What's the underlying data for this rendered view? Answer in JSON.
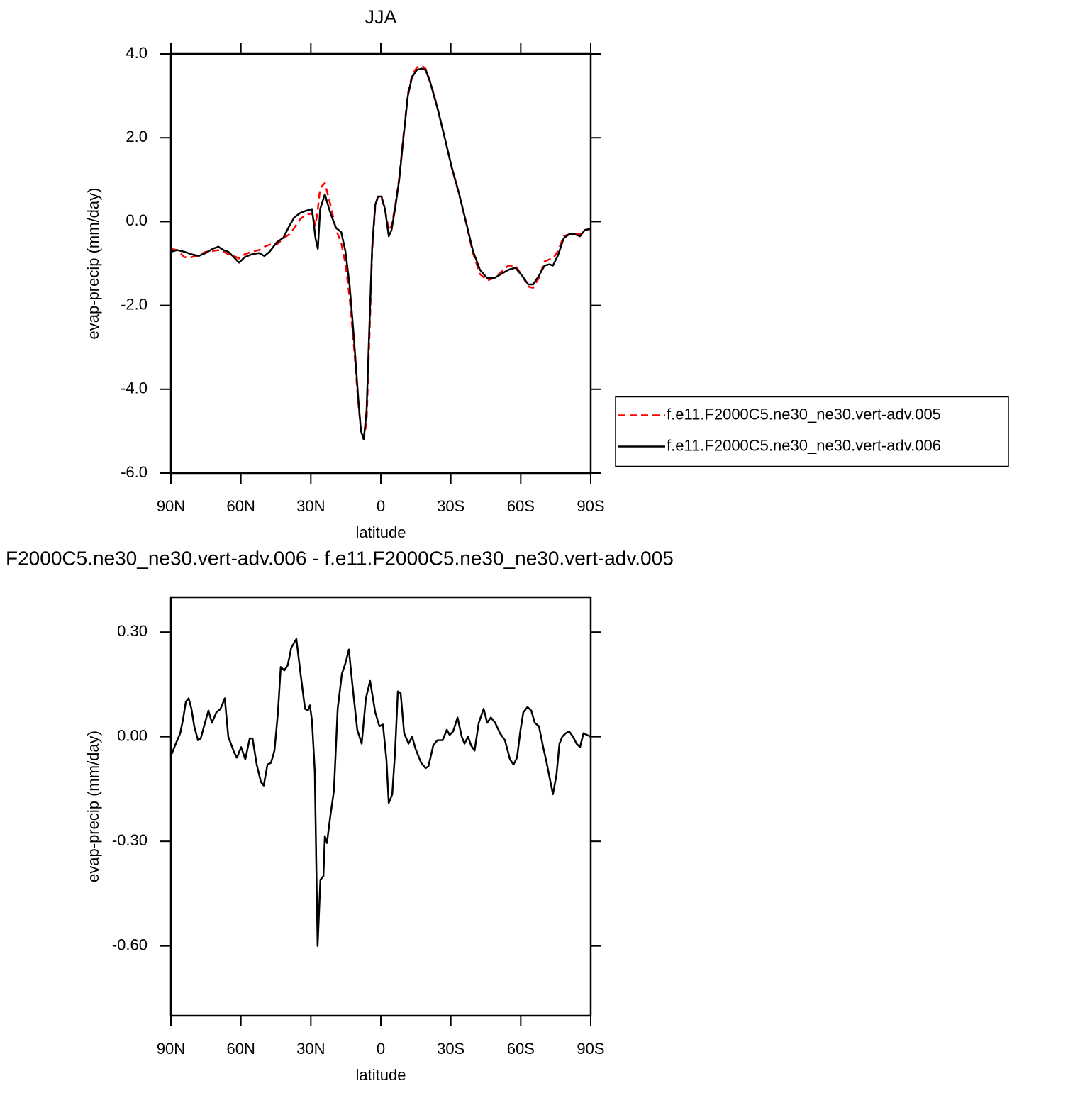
{
  "chart_data": [
    {
      "type": "line",
      "title": "JJA",
      "xlabel": "latitude",
      "ylabel": "evap-precip (mm/day)",
      "xlim": [
        90,
        -90
      ],
      "xticks": [
        {
          "value": 90,
          "label": "90N"
        },
        {
          "value": 60,
          "label": "60N"
        },
        {
          "value": 30,
          "label": "30N"
        },
        0,
        {
          "value": -30,
          "label": "30S"
        },
        {
          "value": -60,
          "label": "60S"
        },
        {
          "value": -90,
          "label": "90S"
        }
      ],
      "ylim": [
        -6,
        4
      ],
      "yticks": [
        {
          "value": -6,
          "label": "-6.0"
        },
        {
          "value": -4,
          "label": "-4.0"
        },
        {
          "value": -2,
          "label": "-2.0"
        },
        {
          "value": 0,
          "label": "0.0"
        },
        {
          "value": 2,
          "label": "2.0"
        },
        {
          "value": 4,
          "label": "4.0"
        }
      ],
      "legend": "right",
      "x": [
        90,
        87.3,
        84.2,
        81.2,
        78.1,
        75.1,
        72.1,
        69.6,
        67.5,
        65.4,
        63,
        60.8,
        58.4,
        55.3,
        52.3,
        49.9,
        47.7,
        44.7,
        41.7,
        39.2,
        37.1,
        34.7,
        32.5,
        29.5,
        28,
        27,
        26,
        24,
        21.6,
        19.2,
        17,
        15.2,
        13.4,
        11.5,
        9.7,
        8.5,
        7.3,
        6.1,
        4.9,
        3.7,
        2.4,
        1.2,
        -0.3,
        -1.8,
        -3.4,
        -4.6,
        -6.1,
        -7.9,
        -9.7,
        -11.6,
        -13.4,
        -15.5,
        -17.6,
        -19.2,
        -21.3,
        -24.3,
        -27.4,
        -30.4,
        -33.4,
        -36.5,
        -39.5,
        -42.5,
        -45.6,
        -48.6,
        -51.6,
        -54.7,
        -57.7,
        -60.7,
        -63.2,
        -65.3,
        -67.7,
        -70.2,
        -72.3,
        -73.8,
        -76,
        -78.4,
        -80.8,
        -83,
        -85.4,
        -87.5,
        -90
      ],
      "series": [
        {
          "name": "f.e11.F2000C5.ne30_ne30.vert-adv.005",
          "color": "#ff0000",
          "dashed": true,
          "values": [
            -0.65,
            -0.68,
            -0.85,
            -0.85,
            -0.8,
            -0.72,
            -0.7,
            -0.68,
            -0.72,
            -0.78,
            -0.82,
            -0.88,
            -0.78,
            -0.72,
            -0.68,
            -0.6,
            -0.55,
            -0.55,
            -0.4,
            -0.3,
            -0.15,
            0.05,
            0.15,
            0.2,
            -0.1,
            0.3,
            0.8,
            0.92,
            0.4,
            -0.2,
            -0.5,
            -1.0,
            -1.8,
            -3.0,
            -4.3,
            -5.0,
            -5.15,
            -4.8,
            -2.8,
            -0.7,
            0.35,
            0.6,
            0.55,
            0.3,
            -0.2,
            -0.1,
            0.35,
            1.05,
            2.05,
            3.05,
            3.5,
            3.68,
            3.72,
            3.65,
            3.32,
            2.72,
            2.0,
            1.28,
            0.68,
            -0.02,
            -0.75,
            -1.25,
            -1.4,
            -1.35,
            -1.2,
            -1.05,
            -1.05,
            -1.3,
            -1.55,
            -1.58,
            -1.35,
            -0.95,
            -0.9,
            -0.88,
            -0.7,
            -0.35,
            -0.3,
            -0.3,
            -0.3,
            -0.2,
            -0.18
          ]
        },
        {
          "name": "f.e11.F2000C5.ne30_ne30.vert-adv.006",
          "color": "#000000",
          "dashed": false,
          "values": [
            -0.72,
            -0.68,
            -0.72,
            -0.78,
            -0.82,
            -0.75,
            -0.65,
            -0.6,
            -0.68,
            -0.72,
            -0.85,
            -0.98,
            -0.85,
            -0.78,
            -0.75,
            -0.82,
            -0.72,
            -0.5,
            -0.38,
            -0.1,
            0.1,
            0.2,
            0.25,
            0.3,
            -0.4,
            -0.65,
            0.3,
            0.65,
            0.2,
            -0.15,
            -0.25,
            -0.7,
            -1.5,
            -2.8,
            -4.2,
            -5.0,
            -5.2,
            -4.5,
            -2.5,
            -0.6,
            0.4,
            0.6,
            0.6,
            0.3,
            -0.35,
            -0.2,
            0.3,
            1.0,
            2.0,
            3.0,
            3.45,
            3.62,
            3.65,
            3.62,
            3.3,
            2.7,
            2.0,
            1.3,
            0.7,
            0.0,
            -0.7,
            -1.15,
            -1.35,
            -1.35,
            -1.25,
            -1.15,
            -1.1,
            -1.3,
            -1.5,
            -1.5,
            -1.3,
            -1.05,
            -1.02,
            -1.05,
            -0.8,
            -0.4,
            -0.3,
            -0.3,
            -0.35,
            -0.2,
            -0.17
          ]
        }
      ]
    },
    {
      "type": "line",
      "title": "F2000C5.ne30_ne30.vert-adv.006 - f.e11.F2000C5.ne30_ne30.vert-adv.005",
      "xlabel": "latitude",
      "ylabel": "evap-precip (mm/day)",
      "xlim": [
        90,
        -90
      ],
      "xticks": [
        {
          "value": 90,
          "label": "90N"
        },
        {
          "value": 60,
          "label": "60N"
        },
        {
          "value": 30,
          "label": "30N"
        },
        0,
        {
          "value": -30,
          "label": "30S"
        },
        {
          "value": -60,
          "label": "60S"
        },
        {
          "value": -90,
          "label": "90S"
        }
      ],
      "ylim": [
        -0.8,
        0.4
      ],
      "yticks": [
        {
          "value": -0.6,
          "label": "-0.60"
        },
        {
          "value": -0.3,
          "label": "-0.30"
        },
        {
          "value": 0,
          "label": "0.00"
        },
        {
          "value": 0.3,
          "label": "0.30"
        }
      ],
      "x": [
        90,
        87.9,
        86,
        84.8,
        83.6,
        82.4,
        81.2,
        80,
        78.4,
        77.2,
        75.4,
        73.9,
        72.4,
        70.5,
        68.7,
        67.8,
        66.9,
        65.4,
        62.9,
        61.7,
        59.9,
        58.1,
        56.2,
        55,
        53.2,
        51.4,
        50.2,
        48.6,
        47.1,
        45.6,
        44.1,
        42.9,
        41.4,
        39.9,
        38.4,
        36.2,
        34.4,
        32.5,
        31.3,
        30.4,
        29.5,
        28.3,
        27.1,
        25.9,
        24.6,
        24,
        23.1,
        21.6,
        20.1,
        18.5,
        16.7,
        15.2,
        13.7,
        12.2,
        10.1,
        8.2,
        6.4,
        4.6,
        2.4,
        0.6,
        -0.9,
        -2.4,
        -3.4,
        -4.9,
        -6.1,
        -7.3,
        -8.5,
        -10,
        -11.9,
        -13.4,
        -14.9,
        -17.3,
        -19.2,
        -20.4,
        -22.5,
        -24.3,
        -26.5,
        -28.3,
        -29.5,
        -31,
        -32.9,
        -34.7,
        -35.9,
        -37.4,
        -38.7,
        -40.2,
        -42,
        -44.1,
        -45.6,
        -47.2,
        -49,
        -51.1,
        -53.2,
        -55.4,
        -56.9,
        -58.4,
        -59.9,
        -61.1,
        -62.9,
        -64.5,
        -66,
        -67.8,
        -69.6,
        -70.8,
        -72.3,
        -73.8,
        -75.3,
        -76.6,
        -77.8,
        -79.3,
        -80.8,
        -82.4,
        -83.9,
        -85.4,
        -86.9,
        -88.4,
        -90
      ],
      "series": [
        {
          "color": "#000000",
          "dashed": false,
          "values": [
            -0.055,
            -0.02,
            0.01,
            0.05,
            0.1,
            0.11,
            0.08,
            0.03,
            -0.01,
            -0.005,
            0.04,
            0.075,
            0.04,
            0.07,
            0.08,
            0.095,
            0.11,
            0.0,
            -0.045,
            -0.06,
            -0.03,
            -0.065,
            -0.005,
            -0.005,
            -0.08,
            -0.13,
            -0.14,
            -0.08,
            -0.075,
            -0.04,
            0.07,
            0.2,
            0.19,
            0.205,
            0.255,
            0.28,
            0.18,
            0.08,
            0.075,
            0.09,
            0.045,
            -0.1,
            -0.6,
            -0.41,
            -0.4,
            -0.285,
            -0.305,
            -0.225,
            -0.155,
            0.08,
            0.18,
            0.21,
            0.25,
            0.15,
            0.02,
            -0.02,
            0.11,
            0.16,
            0.07,
            0.03,
            0.035,
            -0.065,
            -0.19,
            -0.165,
            -0.045,
            0.13,
            0.125,
            0.01,
            -0.02,
            0.0,
            -0.035,
            -0.075,
            -0.09,
            -0.085,
            -0.025,
            -0.01,
            -0.01,
            0.02,
            0.005,
            0.015,
            0.055,
            0.0,
            -0.02,
            0.0,
            -0.025,
            -0.04,
            0.04,
            0.08,
            0.04,
            0.055,
            0.04,
            0.01,
            -0.01,
            -0.065,
            -0.08,
            -0.06,
            0.02,
            0.07,
            0.085,
            0.075,
            0.04,
            0.03,
            -0.03,
            -0.065,
            -0.115,
            -0.165,
            -0.11,
            -0.02,
            0.0,
            0.01,
            0.015,
            0.0,
            -0.02,
            -0.03,
            0.01,
            0.005,
            0.0
          ]
        }
      ]
    }
  ]
}
